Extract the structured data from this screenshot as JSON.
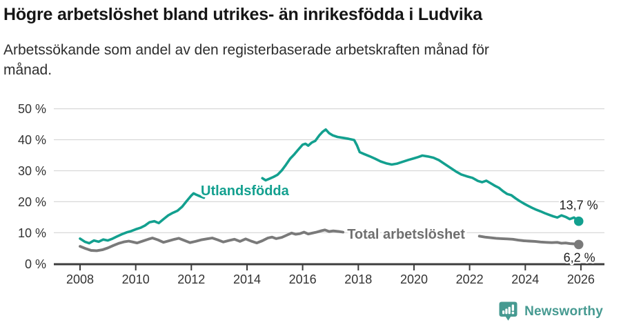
{
  "header": {
    "title": "Högre arbetslöshet bland utrikes- än inrikesfödda i Ludvika",
    "subtitle": "Arbetssökande som andel av den registerbaserade arbetskraften månad för månad."
  },
  "chart_data": {
    "type": "line",
    "unit": "%",
    "grid": true,
    "x_axis": {
      "ticks": [
        2008,
        2010,
        2012,
        2014,
        2016,
        2018,
        2020,
        2022,
        2024,
        2026
      ],
      "tick_labels": [
        "2008",
        "2010",
        "2012",
        "2014",
        "2016",
        "2018",
        "2020",
        "2022",
        "2024",
        "2026"
      ]
    },
    "y_axis": {
      "ticks": [
        0,
        10,
        20,
        30,
        40,
        50
      ],
      "tick_labels": [
        "0 %",
        "10 %",
        "20 %",
        "30 %",
        "40 %",
        "50 %"
      ],
      "range": [
        0,
        50
      ]
    },
    "series": [
      {
        "name": "Utlandsfödda",
        "color": "#13a08f",
        "label_color": "#13a08f",
        "label_year": 2012.34,
        "label_value": 22.1,
        "end_label": "13,7 %",
        "end_value": 13.7,
        "end_label_dx": 28,
        "end_label_dy": -17,
        "segments": [
          [
            [
              2008.0,
              8.1
            ],
            [
              2008.17,
              7.1
            ],
            [
              2008.33,
              6.6
            ],
            [
              2008.5,
              7.5
            ],
            [
              2008.67,
              7.1
            ],
            [
              2008.83,
              7.8
            ],
            [
              2009.0,
              7.5
            ],
            [
              2009.17,
              8.1
            ],
            [
              2009.33,
              8.8
            ],
            [
              2009.5,
              9.5
            ],
            [
              2009.67,
              10.1
            ],
            [
              2009.83,
              10.5
            ],
            [
              2010.0,
              11.1
            ],
            [
              2010.17,
              11.6
            ],
            [
              2010.33,
              12.3
            ],
            [
              2010.5,
              13.4
            ],
            [
              2010.67,
              13.7
            ],
            [
              2010.83,
              13.1
            ],
            [
              2011.0,
              14.4
            ],
            [
              2011.17,
              15.6
            ],
            [
              2011.33,
              16.4
            ],
            [
              2011.5,
              17.1
            ],
            [
              2011.67,
              18.4
            ],
            [
              2011.83,
              20.2
            ],
            [
              2012.0,
              22.0
            ],
            [
              2012.08,
              22.7
            ],
            [
              2012.17,
              22.3
            ],
            [
              2012.3,
              21.8
            ],
            [
              2012.45,
              21.3
            ]
          ],
          [
            [
              2014.55,
              27.6
            ],
            [
              2014.67,
              26.9
            ],
            [
              2014.8,
              27.4
            ],
            [
              2014.95,
              28.0
            ],
            [
              2015.1,
              28.7
            ],
            [
              2015.25,
              30.1
            ],
            [
              2015.4,
              31.9
            ],
            [
              2015.55,
              33.9
            ],
            [
              2015.7,
              35.3
            ],
            [
              2015.85,
              36.9
            ],
            [
              2016.0,
              38.4
            ],
            [
              2016.1,
              38.7
            ],
            [
              2016.2,
              38.1
            ],
            [
              2016.33,
              39.1
            ],
            [
              2016.45,
              39.6
            ],
            [
              2016.6,
              41.4
            ],
            [
              2016.72,
              42.6
            ],
            [
              2016.83,
              43.3
            ],
            [
              2016.95,
              42.1
            ],
            [
              2017.08,
              41.4
            ],
            [
              2017.25,
              40.9
            ],
            [
              2017.45,
              40.6
            ],
            [
              2017.65,
              40.3
            ],
            [
              2017.85,
              39.9
            ],
            [
              2017.95,
              38.2
            ],
            [
              2018.05,
              36.0
            ],
            [
              2018.2,
              35.4
            ],
            [
              2018.4,
              34.7
            ],
            [
              2018.6,
              33.9
            ],
            [
              2018.8,
              33.0
            ],
            [
              2019.0,
              32.4
            ],
            [
              2019.2,
              32.0
            ],
            [
              2019.4,
              32.3
            ],
            [
              2019.6,
              32.9
            ],
            [
              2019.8,
              33.5
            ],
            [
              2020.0,
              34.0
            ],
            [
              2020.15,
              34.4
            ],
            [
              2020.3,
              34.9
            ],
            [
              2020.5,
              34.6
            ],
            [
              2020.7,
              34.2
            ],
            [
              2020.9,
              33.4
            ],
            [
              2021.1,
              32.2
            ],
            [
              2021.3,
              31.0
            ],
            [
              2021.5,
              29.8
            ],
            [
              2021.7,
              28.8
            ],
            [
              2021.9,
              28.2
            ],
            [
              2022.1,
              27.7
            ],
            [
              2022.3,
              26.7
            ],
            [
              2022.45,
              26.3
            ],
            [
              2022.6,
              26.8
            ],
            [
              2022.75,
              26.0
            ],
            [
              2022.9,
              25.2
            ],
            [
              2023.05,
              24.5
            ],
            [
              2023.2,
              23.4
            ],
            [
              2023.35,
              22.5
            ],
            [
              2023.5,
              22.1
            ],
            [
              2023.65,
              21.1
            ],
            [
              2023.8,
              20.2
            ],
            [
              2023.95,
              19.4
            ],
            [
              2024.1,
              18.7
            ],
            [
              2024.25,
              18.0
            ],
            [
              2024.4,
              17.4
            ],
            [
              2024.55,
              16.9
            ],
            [
              2024.7,
              16.3
            ],
            [
              2024.85,
              15.8
            ],
            [
              2025.0,
              15.3
            ],
            [
              2025.15,
              14.9
            ],
            [
              2025.3,
              15.6
            ],
            [
              2025.45,
              15.1
            ],
            [
              2025.6,
              14.4
            ],
            [
              2025.75,
              14.9
            ],
            [
              2025.92,
              13.7
            ]
          ]
        ]
      },
      {
        "name": "Total arbetslöshet",
        "color": "#7a7a7a",
        "label_color": "#6f6f6f",
        "label_year": 2017.6,
        "label_value": 8.1,
        "end_label": "6,2 %",
        "end_value": 6.2,
        "end_label_dx": 24,
        "end_label_dy": 25,
        "segments": [
          [
            [
              2008.0,
              5.6
            ],
            [
              2008.2,
              4.9
            ],
            [
              2008.4,
              4.3
            ],
            [
              2008.6,
              4.2
            ],
            [
              2008.8,
              4.5
            ],
            [
              2009.0,
              5.1
            ],
            [
              2009.2,
              5.9
            ],
            [
              2009.4,
              6.6
            ],
            [
              2009.6,
              7.1
            ],
            [
              2009.75,
              7.3
            ],
            [
              2009.9,
              7.0
            ],
            [
              2010.05,
              6.7
            ],
            [
              2010.25,
              7.3
            ],
            [
              2010.45,
              7.9
            ],
            [
              2010.6,
              8.3
            ],
            [
              2010.8,
              7.7
            ],
            [
              2011.0,
              6.9
            ],
            [
              2011.2,
              7.4
            ],
            [
              2011.4,
              7.9
            ],
            [
              2011.55,
              8.2
            ],
            [
              2011.75,
              7.5
            ],
            [
              2011.95,
              6.8
            ],
            [
              2012.15,
              7.2
            ],
            [
              2012.35,
              7.7
            ],
            [
              2012.55,
              8.0
            ],
            [
              2012.75,
              8.3
            ],
            [
              2012.95,
              7.7
            ],
            [
              2013.15,
              7.0
            ],
            [
              2013.35,
              7.5
            ],
            [
              2013.55,
              7.9
            ],
            [
              2013.75,
              7.2
            ],
            [
              2013.95,
              8.0
            ],
            [
              2014.15,
              7.3
            ],
            [
              2014.35,
              6.7
            ],
            [
              2014.55,
              7.4
            ],
            [
              2014.75,
              8.3
            ],
            [
              2014.9,
              8.6
            ],
            [
              2015.05,
              8.1
            ],
            [
              2015.25,
              8.5
            ],
            [
              2015.45,
              9.3
            ],
            [
              2015.6,
              9.9
            ],
            [
              2015.75,
              9.5
            ],
            [
              2015.9,
              9.7
            ],
            [
              2016.05,
              10.2
            ],
            [
              2016.2,
              9.6
            ],
            [
              2016.35,
              9.9
            ],
            [
              2016.5,
              10.2
            ],
            [
              2016.65,
              10.6
            ],
            [
              2016.8,
              10.9
            ],
            [
              2016.95,
              10.4
            ],
            [
              2017.1,
              10.6
            ],
            [
              2017.3,
              10.4
            ],
            [
              2017.45,
              10.2
            ]
          ],
          [
            [
              2022.35,
              8.9
            ],
            [
              2022.55,
              8.6
            ],
            [
              2022.75,
              8.4
            ],
            [
              2022.95,
              8.2
            ],
            [
              2023.15,
              8.1
            ],
            [
              2023.35,
              8.0
            ],
            [
              2023.55,
              7.9
            ],
            [
              2023.75,
              7.6
            ],
            [
              2023.95,
              7.4
            ],
            [
              2024.15,
              7.3
            ],
            [
              2024.35,
              7.2
            ],
            [
              2024.55,
              7.0
            ],
            [
              2024.75,
              6.9
            ],
            [
              2024.95,
              6.8
            ],
            [
              2025.15,
              6.9
            ],
            [
              2025.3,
              6.6
            ],
            [
              2025.45,
              6.7
            ],
            [
              2025.6,
              6.5
            ],
            [
              2025.75,
              6.4
            ],
            [
              2025.92,
              6.2
            ]
          ]
        ]
      }
    ]
  },
  "footer": {
    "brand": "Newsworthy",
    "brand_color": "#469a91",
    "logo_icon": "newsworthy-bubble-barchart-icon"
  }
}
